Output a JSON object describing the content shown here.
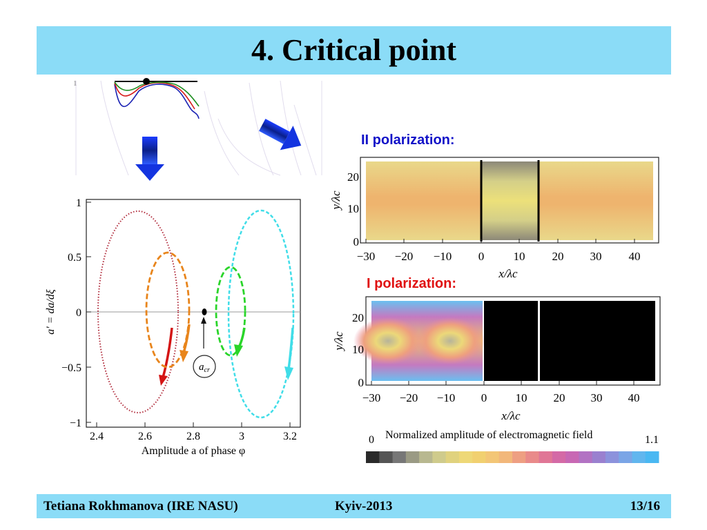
{
  "slide": {
    "title": "4. Critical point",
    "footer": {
      "author": "Tetiana Rokhmanova (IRE NASU)",
      "place": "Kyiv-2013",
      "page": "13/16"
    }
  },
  "colors": {
    "bar": "#8bdcf7",
    "polarization_ii": "#1010c8",
    "polarization_i": "#e01010"
  },
  "icons": [
    "arrow-down-icon",
    "arrow-diagonal-icon"
  ],
  "inset": {
    "tick_label": "1"
  },
  "phase_plot": {
    "ylabel": "a' = da/dξ",
    "xlabel": "Amplitude a of phase φ",
    "yticks": [
      "1",
      "0.5",
      "0",
      "−0.5",
      "−1"
    ],
    "xticks": [
      "2.4",
      "2.6",
      "2.8",
      "3",
      "3.2"
    ],
    "critical_label": "a",
    "critical_sub": "cr"
  },
  "map_ii": {
    "title": "II polarization:",
    "ylabel": "y/λc",
    "xlabel": "x/λc",
    "yticks": [
      "20",
      "10",
      "0"
    ],
    "xticks": [
      "−30",
      "−20",
      "−10",
      "0",
      "10",
      "20",
      "30",
      "40"
    ]
  },
  "map_i": {
    "title": "I polarization:",
    "ylabel": "y/λc",
    "xlabel": "x/λc",
    "yticks": [
      "20",
      "10",
      "0"
    ],
    "xticks": [
      "−30",
      "−20",
      "−10",
      "0",
      "10",
      "20",
      "30",
      "40"
    ]
  },
  "colorbar": {
    "label": "Normalized amplitude of electromagnetic field",
    "min": "0",
    "max": "1.1",
    "colors": [
      "#2a2a2a",
      "#555555",
      "#777777",
      "#9a9a84",
      "#b8b890",
      "#cfcb8c",
      "#e0d27e",
      "#eed877",
      "#f1d070",
      "#f3c676",
      "#f2b77a",
      "#ee9f82",
      "#e98a8a",
      "#e07696",
      "#d46aa6",
      "#c868b4",
      "#b272c3",
      "#9a80cf",
      "#8c92dc",
      "#7aa5e6",
      "#61b6ee",
      "#4ab8f2"
    ]
  }
}
